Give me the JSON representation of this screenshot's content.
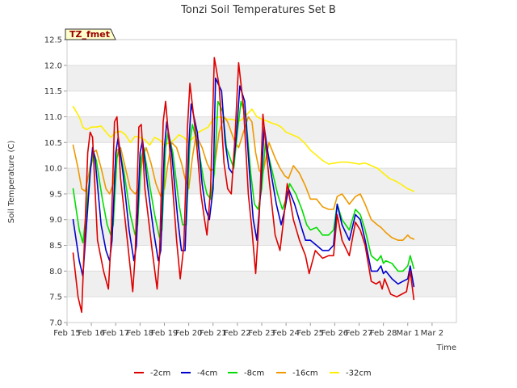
{
  "chart_data": {
    "type": "line",
    "title": "Tonzi Soil Temperatures Set B",
    "xlabel": "Time",
    "ylabel": "Soil Temperature (C)",
    "badge": "TZ_fmet",
    "grid": "horizontal bands",
    "legend_position": "bottom-center",
    "xlim": [
      0,
      16
    ],
    "ylim": [
      7.0,
      12.5
    ],
    "x_unit": "days since Feb 15",
    "x_ticks": [
      {
        "x": 0,
        "label": "Feb 15"
      },
      {
        "x": 1,
        "label": "Feb 16"
      },
      {
        "x": 2,
        "label": "Feb 17"
      },
      {
        "x": 3,
        "label": "Feb 18"
      },
      {
        "x": 4,
        "label": "Feb 19"
      },
      {
        "x": 5,
        "label": "Feb 20"
      },
      {
        "x": 6,
        "label": "Feb 21"
      },
      {
        "x": 7,
        "label": "Feb 22"
      },
      {
        "x": 8,
        "label": "Feb 23"
      },
      {
        "x": 9,
        "label": "Feb 24"
      },
      {
        "x": 10,
        "label": "Feb 25"
      },
      {
        "x": 11,
        "label": "Feb 26"
      },
      {
        "x": 12,
        "label": "Feb 27"
      },
      {
        "x": 13,
        "label": "Feb 28"
      },
      {
        "x": 14,
        "label": "Mar 1"
      },
      {
        "x": 15,
        "label": "Mar 2"
      }
    ],
    "y_ticks": [
      {
        "y": 7.0,
        "label": "7.0"
      },
      {
        "y": 7.5,
        "label": "7.5"
      },
      {
        "y": 8.0,
        "label": "8.0"
      },
      {
        "y": 8.5,
        "label": "8.5"
      },
      {
        "y": 9.0,
        "label": "9.0"
      },
      {
        "y": 9.5,
        "label": "9.5"
      },
      {
        "y": 10.0,
        "label": "10.0"
      },
      {
        "y": 10.5,
        "label": "10.5"
      },
      {
        "y": 11.0,
        "label": "11.0"
      },
      {
        "y": 11.5,
        "label": "11.5"
      },
      {
        "y": 12.0,
        "label": "12.0"
      },
      {
        "y": 12.5,
        "label": "12.5"
      }
    ],
    "series": [
      {
        "name": "-2cm",
        "color": "#dd0000",
        "x": [
          0.25,
          0.45,
          0.6,
          0.75,
          0.85,
          0.95,
          1.05,
          1.25,
          1.5,
          1.7,
          1.8,
          1.95,
          2.05,
          2.2,
          2.5,
          2.7,
          2.8,
          2.95,
          3.05,
          3.2,
          3.5,
          3.7,
          3.8,
          3.95,
          4.05,
          4.25,
          4.5,
          4.65,
          4.8,
          4.95,
          5.05,
          5.3,
          5.5,
          5.65,
          5.75,
          5.9,
          6.05,
          6.25,
          6.45,
          6.6,
          6.75,
          6.9,
          7.05,
          7.25,
          7.45,
          7.6,
          7.75,
          7.9,
          8.05,
          8.3,
          8.55,
          8.75,
          8.9,
          9.05,
          9.3,
          9.55,
          9.8,
          9.95,
          10.2,
          10.5,
          10.75,
          10.95,
          11.1,
          11.3,
          11.6,
          11.85,
          12.05,
          12.25,
          12.5,
          12.7,
          12.85,
          12.95,
          13.05,
          13.3,
          13.55,
          13.75,
          13.95,
          14.1,
          14.25
        ],
        "values": [
          8.35,
          7.5,
          7.2,
          9.0,
          10.3,
          10.7,
          10.6,
          8.6,
          8.0,
          7.65,
          8.5,
          10.9,
          11.0,
          9.8,
          8.5,
          7.6,
          8.3,
          10.8,
          10.85,
          9.6,
          8.4,
          7.65,
          8.3,
          10.9,
          11.3,
          10.2,
          8.6,
          7.85,
          8.5,
          10.8,
          11.65,
          10.6,
          9.5,
          9.0,
          8.7,
          9.6,
          12.15,
          11.6,
          10.1,
          9.6,
          9.5,
          10.6,
          12.05,
          11.2,
          9.5,
          8.8,
          7.95,
          9.1,
          11.05,
          9.8,
          8.7,
          8.4,
          9.0,
          9.7,
          9.0,
          8.6,
          8.3,
          7.95,
          8.4,
          8.25,
          8.3,
          8.3,
          9.1,
          8.6,
          8.3,
          8.95,
          8.8,
          8.5,
          7.8,
          7.75,
          7.8,
          7.65,
          7.85,
          7.55,
          7.5,
          7.55,
          7.6,
          8.0,
          7.45
        ]
      },
      {
        "name": "-4cm",
        "color": "#0000cc",
        "x": [
          0.25,
          0.5,
          0.65,
          0.8,
          0.95,
          1.05,
          1.15,
          1.4,
          1.6,
          1.75,
          1.85,
          2.0,
          2.1,
          2.3,
          2.55,
          2.75,
          2.85,
          3.0,
          3.1,
          3.3,
          3.55,
          3.75,
          3.85,
          4.0,
          4.1,
          4.3,
          4.55,
          4.7,
          4.85,
          5.0,
          5.1,
          5.35,
          5.55,
          5.7,
          5.85,
          6.0,
          6.1,
          6.35,
          6.5,
          6.65,
          6.8,
          6.95,
          7.1,
          7.3,
          7.5,
          7.65,
          7.8,
          7.95,
          8.1,
          8.35,
          8.6,
          8.8,
          8.95,
          9.1,
          9.35,
          9.6,
          9.8,
          10.0,
          10.25,
          10.5,
          10.75,
          10.95,
          11.1,
          11.3,
          11.6,
          11.85,
          12.05,
          12.25,
          12.5,
          12.75,
          12.9,
          13.0,
          13.1,
          13.35,
          13.6,
          13.8,
          14.0,
          14.1,
          14.25
        ],
        "values": [
          9.0,
          8.2,
          7.9,
          8.9,
          9.9,
          10.4,
          10.2,
          8.9,
          8.4,
          8.2,
          8.6,
          10.3,
          10.6,
          9.9,
          8.8,
          8.2,
          8.5,
          10.3,
          10.55,
          9.7,
          8.8,
          8.2,
          8.4,
          10.4,
          10.9,
          10.3,
          9.0,
          8.4,
          8.4,
          10.4,
          11.25,
          10.7,
          9.7,
          9.2,
          9.0,
          9.6,
          11.75,
          11.5,
          10.5,
          10.0,
          9.9,
          10.6,
          11.6,
          11.3,
          9.9,
          9.0,
          8.6,
          9.5,
          10.8,
          10.0,
          9.3,
          8.9,
          9.2,
          9.6,
          9.3,
          8.9,
          8.6,
          8.6,
          8.5,
          8.4,
          8.4,
          8.5,
          9.3,
          8.9,
          8.6,
          9.1,
          9.0,
          8.6,
          8.0,
          8.0,
          8.1,
          7.95,
          8.0,
          7.85,
          7.75,
          7.8,
          7.85,
          8.1,
          7.7
        ]
      },
      {
        "name": "-8cm",
        "color": "#00dd00",
        "x": [
          0.25,
          0.5,
          0.65,
          0.8,
          0.95,
          1.1,
          1.2,
          1.45,
          1.65,
          1.8,
          1.9,
          2.05,
          2.15,
          2.35,
          2.6,
          2.8,
          2.9,
          3.05,
          3.15,
          3.35,
          3.6,
          3.8,
          3.9,
          4.05,
          4.15,
          4.35,
          4.6,
          4.75,
          4.9,
          5.05,
          5.15,
          5.4,
          5.6,
          5.75,
          5.9,
          6.05,
          6.2,
          6.4,
          6.55,
          6.7,
          6.85,
          7.0,
          7.15,
          7.35,
          7.55,
          7.7,
          7.85,
          8.0,
          8.15,
          8.4,
          8.65,
          8.85,
          9.0,
          9.15,
          9.4,
          9.65,
          9.85,
          10.0,
          10.25,
          10.5,
          10.75,
          10.95,
          11.1,
          11.3,
          11.6,
          11.85,
          12.05,
          12.25,
          12.5,
          12.75,
          12.9,
          13.0,
          13.1,
          13.35,
          13.6,
          13.8,
          14.0,
          14.1,
          14.25
        ],
        "values": [
          9.6,
          8.8,
          8.55,
          9.2,
          9.95,
          10.3,
          10.15,
          9.4,
          8.9,
          8.7,
          8.9,
          10.2,
          10.4,
          9.9,
          9.1,
          8.7,
          8.9,
          10.2,
          10.4,
          9.8,
          9.1,
          8.65,
          8.8,
          10.4,
          10.7,
          10.3,
          9.3,
          8.9,
          8.9,
          10.5,
          10.85,
          10.4,
          9.8,
          9.5,
          9.4,
          9.9,
          11.3,
          11.1,
          10.4,
          10.2,
          10.0,
          10.7,
          11.3,
          11.0,
          9.9,
          9.3,
          9.2,
          9.6,
          10.5,
          10.0,
          9.5,
          9.2,
          9.4,
          9.7,
          9.5,
          9.2,
          8.9,
          8.8,
          8.85,
          8.7,
          8.7,
          8.8,
          9.3,
          9.0,
          8.8,
          9.2,
          9.1,
          8.8,
          8.3,
          8.2,
          8.3,
          8.15,
          8.2,
          8.15,
          8.0,
          8.0,
          8.1,
          8.3,
          8.05
        ]
      },
      {
        "name": "-16cm",
        "color": "#ee9900",
        "x": [
          0.25,
          0.45,
          0.6,
          0.75,
          0.9,
          1.05,
          1.2,
          1.4,
          1.6,
          1.75,
          1.9,
          2.05,
          2.2,
          2.4,
          2.6,
          2.8,
          2.95,
          3.1,
          3.25,
          3.45,
          3.65,
          3.85,
          4.0,
          4.15,
          4.3,
          4.5,
          4.7,
          4.85,
          5.0,
          5.15,
          5.3,
          5.55,
          5.75,
          5.9,
          6.05,
          6.25,
          6.45,
          6.6,
          6.75,
          6.9,
          7.05,
          7.25,
          7.45,
          7.6,
          7.75,
          7.9,
          8.05,
          8.3,
          8.55,
          8.75,
          8.95,
          9.1,
          9.3,
          9.55,
          9.8,
          10.0,
          10.25,
          10.5,
          10.75,
          10.95,
          11.1,
          11.3,
          11.6,
          11.85,
          12.05,
          12.25,
          12.5,
          12.75,
          12.9,
          13.0,
          13.1,
          13.35,
          13.6,
          13.8,
          14.0,
          14.1,
          14.25
        ],
        "values": [
          10.45,
          10.0,
          9.6,
          9.55,
          9.9,
          10.3,
          10.35,
          10.0,
          9.6,
          9.5,
          9.7,
          10.35,
          10.4,
          10.0,
          9.6,
          9.5,
          9.6,
          10.2,
          10.4,
          10.1,
          9.7,
          9.45,
          9.6,
          10.1,
          10.5,
          10.4,
          10.1,
          9.8,
          9.6,
          10.2,
          10.65,
          10.4,
          10.1,
          9.95,
          10.0,
          10.7,
          11.0,
          10.9,
          10.7,
          10.5,
          10.4,
          10.7,
          11.0,
          10.9,
          10.3,
          9.95,
          9.9,
          10.5,
          10.2,
          10.0,
          9.85,
          9.8,
          10.05,
          9.9,
          9.65,
          9.4,
          9.4,
          9.25,
          9.2,
          9.2,
          9.45,
          9.5,
          9.3,
          9.45,
          9.5,
          9.3,
          9.0,
          8.9,
          8.85,
          8.8,
          8.75,
          8.65,
          8.6,
          8.6,
          8.7,
          8.65,
          8.62
        ]
      },
      {
        "name": "-32cm",
        "color": "#ffee00",
        "x": [
          0.25,
          0.5,
          0.65,
          0.8,
          1.0,
          1.2,
          1.4,
          1.6,
          1.8,
          2.0,
          2.2,
          2.4,
          2.6,
          2.8,
          3.0,
          3.2,
          3.4,
          3.6,
          3.8,
          4.0,
          4.2,
          4.4,
          4.6,
          4.8,
          5.0,
          5.2,
          5.4,
          5.6,
          5.8,
          6.0,
          6.2,
          6.4,
          6.6,
          6.8,
          7.0,
          7.2,
          7.4,
          7.6,
          7.8,
          8.0,
          8.2,
          8.4,
          8.6,
          8.8,
          9.0,
          9.25,
          9.5,
          9.75,
          10.0,
          10.25,
          10.5,
          10.75,
          11.0,
          11.25,
          11.5,
          11.75,
          12.0,
          12.25,
          12.5,
          12.75,
          13.0,
          13.25,
          13.5,
          13.75,
          14.0,
          14.25
        ],
        "values": [
          11.2,
          11.0,
          10.8,
          10.75,
          10.8,
          10.8,
          10.82,
          10.7,
          10.6,
          10.7,
          10.72,
          10.65,
          10.5,
          10.62,
          10.6,
          10.55,
          10.45,
          10.6,
          10.55,
          10.45,
          10.5,
          10.55,
          10.65,
          10.6,
          10.5,
          10.6,
          10.7,
          10.75,
          10.8,
          10.95,
          11.0,
          10.98,
          10.95,
          10.95,
          10.9,
          10.95,
          11.05,
          11.15,
          11.0,
          10.95,
          10.92,
          10.88,
          10.85,
          10.8,
          10.7,
          10.65,
          10.6,
          10.5,
          10.35,
          10.25,
          10.15,
          10.08,
          10.1,
          10.12,
          10.12,
          10.1,
          10.08,
          10.1,
          10.05,
          10.0,
          9.9,
          9.8,
          9.75,
          9.68,
          9.6,
          9.55
        ]
      }
    ]
  }
}
